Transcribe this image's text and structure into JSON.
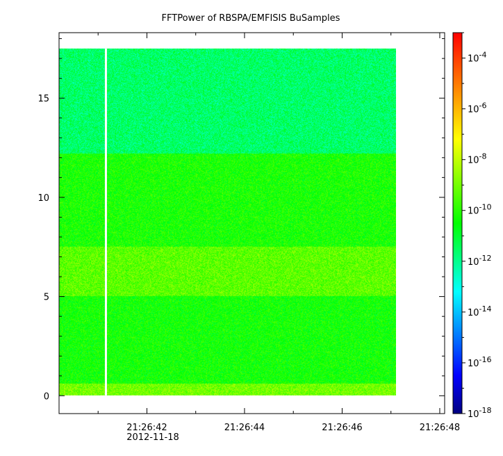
{
  "chart_data": {
    "type": "heatmap",
    "title": "FFTPower of RBSPA/EMFISIS  BuSamples",
    "x_date": "2012-11-18",
    "x_ticks": [
      "21:26:42",
      "21:26:44",
      "21:26:46",
      "21:26:48"
    ],
    "x_range": [
      "21:26:40.2",
      "21:26:48.1"
    ],
    "data_time_range": [
      "21:26:40.2",
      "21:26:47.1"
    ],
    "gap_time": "21:26:41.16",
    "ylim": [
      -0.9,
      18.3
    ],
    "y_ticks": [
      0,
      5,
      10,
      15
    ],
    "data_y_range": [
      0,
      17.5
    ],
    "colorbar": {
      "scale": "log",
      "range": [
        1e-18,
        0.001
      ],
      "tick_labels": [
        {
          "base": "10",
          "exp": "-4",
          "value": -4
        },
        {
          "base": "10",
          "exp": "-6",
          "value": -6
        },
        {
          "base": "10",
          "exp": "-8",
          "value": -8
        },
        {
          "base": "10",
          "exp": "-10",
          "value": -10
        },
        {
          "base": "10",
          "exp": "-12",
          "value": -12
        },
        {
          "base": "10",
          "exp": "-14",
          "value": -14
        },
        {
          "base": "10",
          "exp": "-16",
          "value": -16
        },
        {
          "base": "10",
          "exp": "-18",
          "value": -18
        }
      ],
      "colors": [
        "#000080",
        "#0000ff",
        "#00ffff",
        "#00ff00",
        "#ffff00",
        "#ff0000"
      ]
    },
    "power_bands_log10": [
      {
        "y_from": 0,
        "y_to": 0.6,
        "level": -9.0
      },
      {
        "y_from": 0.6,
        "y_to": 5.0,
        "level": -10.3
      },
      {
        "y_from": 5.0,
        "y_to": 7.5,
        "level": -9.3
      },
      {
        "y_from": 7.5,
        "y_to": 12.2,
        "level": -10.2
      },
      {
        "y_from": 12.2,
        "y_to": 17.5,
        "level": -11.6
      }
    ]
  }
}
